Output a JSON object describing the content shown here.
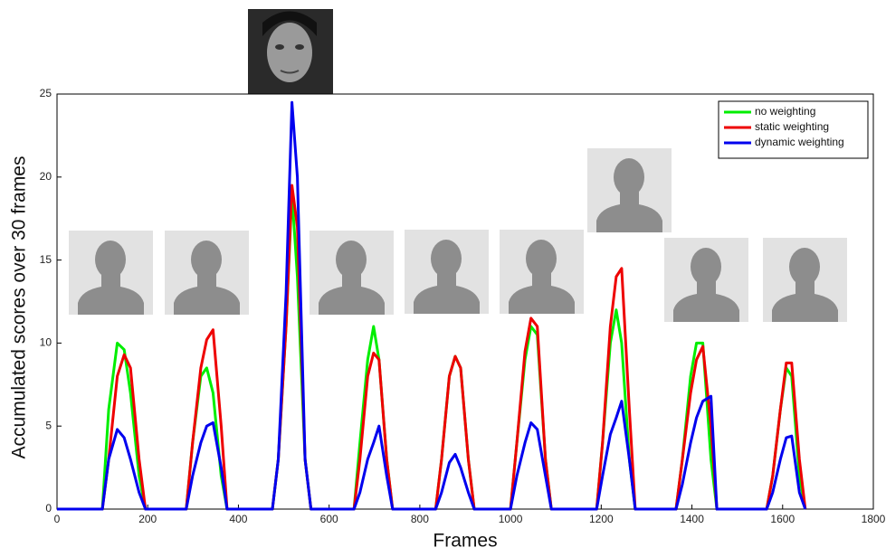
{
  "chart_data": {
    "type": "line",
    "x_label": "Frames",
    "y_label": "Accumulated scores over 30 frames",
    "x": [
      0,
      100,
      114,
      133,
      148,
      162,
      181,
      195,
      285,
      299,
      317,
      330,
      344,
      362,
      375,
      475,
      488,
      505,
      518,
      530,
      547,
      560,
      655,
      668,
      685,
      698,
      710,
      727,
      740,
      835,
      848,
      865,
      878,
      890,
      907,
      920,
      1000,
      1014,
      1032,
      1045,
      1059,
      1077,
      1090,
      1190,
      1203,
      1220,
      1233,
      1245,
      1262,
      1275,
      1365,
      1379,
      1397,
      1410,
      1424,
      1442,
      1455,
      1565,
      1578,
      1595,
      1608,
      1620,
      1637,
      1650
    ],
    "series": [
      {
        "name": "no weighting",
        "color": "#00ee00",
        "values": [
          0,
          0,
          6,
          10,
          9.6,
          7,
          2,
          0,
          0,
          4,
          8,
          8.5,
          7,
          2,
          0,
          0,
          3,
          11,
          19,
          14,
          3,
          0,
          0,
          4,
          9,
          11,
          9,
          3,
          0,
          0,
          3,
          8,
          9.2,
          8.5,
          3,
          0,
          0,
          4,
          9,
          11,
          10.5,
          3,
          0,
          0,
          4,
          10,
          12,
          10,
          3,
          0,
          0,
          3,
          8,
          10,
          10,
          3,
          0,
          0,
          2,
          6,
          8.5,
          8,
          2,
          0
        ]
      },
      {
        "name": "static weighting",
        "color": "#ee0000",
        "values": [
          0,
          0,
          3,
          8,
          9.3,
          8.5,
          3,
          0,
          0,
          4,
          8.5,
          10.2,
          10.8,
          5,
          0,
          0,
          3,
          11,
          19.5,
          17,
          3,
          0,
          0,
          3,
          8,
          9.4,
          9,
          3,
          0,
          0,
          3,
          8,
          9.2,
          8.5,
          3,
          0,
          0,
          4,
          9.5,
          11.5,
          11,
          3,
          0,
          0,
          4,
          11,
          14,
          14.5,
          6,
          0,
          0,
          3,
          7,
          9,
          9.8,
          5,
          0,
          0,
          2,
          6,
          8.8,
          8.8,
          3,
          0
        ]
      },
      {
        "name": "dynamic weighting",
        "color": "#0000ee",
        "values": [
          0,
          0,
          3,
          4.8,
          4.3,
          3,
          1,
          0,
          0,
          2,
          4,
          5,
          5.2,
          2.5,
          0,
          0,
          3,
          13,
          24.5,
          20,
          3,
          0,
          0,
          1,
          3,
          4,
          5,
          2,
          0,
          0,
          1,
          2.8,
          3.3,
          2.5,
          1,
          0,
          0,
          2,
          4,
          5.2,
          4.8,
          2,
          0,
          0,
          2,
          4.5,
          5.5,
          6.5,
          3,
          0,
          0,
          1.5,
          4,
          5.5,
          6.5,
          6.8,
          0,
          0,
          1,
          3,
          4.3,
          4.4,
          1,
          0
        ]
      }
    ],
    "xlim": [
      0,
      1800
    ],
    "xticks": [
      0,
      200,
      400,
      600,
      800,
      1000,
      1200,
      1400,
      1600,
      1800
    ],
    "ylim": [
      0,
      25
    ],
    "yticks": [
      0,
      5,
      10,
      15,
      20,
      25
    ],
    "legend": "upper right"
  }
}
